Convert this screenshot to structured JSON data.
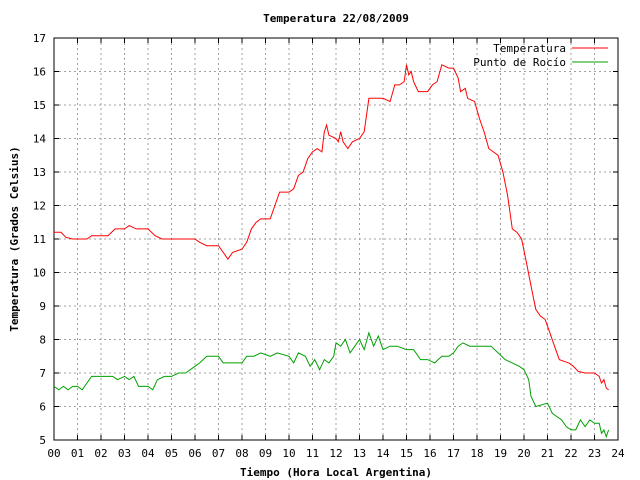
{
  "chart_data": {
    "type": "line",
    "title": "Temperatura 22/08/2009",
    "xlabel": "Tiempo (Hora Local Argentina)",
    "ylabel": "Temperatura (Grados Celsius)",
    "xlim": [
      0,
      24
    ],
    "ylim": [
      5,
      17
    ],
    "x_ticks": [
      0,
      1,
      2,
      3,
      4,
      5,
      6,
      7,
      8,
      9,
      10,
      11,
      12,
      13,
      14,
      15,
      16,
      17,
      18,
      19,
      20,
      21,
      22,
      23,
      24
    ],
    "x_tick_labels": [
      "00",
      "01",
      "02",
      "03",
      "04",
      "05",
      "06",
      "07",
      "08",
      "09",
      "10",
      "11",
      "12",
      "13",
      "14",
      "15",
      "16",
      "17",
      "18",
      "19",
      "20",
      "21",
      "22",
      "23",
      "24"
    ],
    "y_ticks": [
      5,
      6,
      7,
      8,
      9,
      10,
      11,
      12,
      13,
      14,
      15,
      16,
      17
    ],
    "y_tick_labels": [
      "5",
      "6",
      "7",
      "8",
      "9",
      "10",
      "11",
      "12",
      "13",
      "14",
      "15",
      "16",
      "17"
    ],
    "grid": true,
    "legend_position": "top-right",
    "series": [
      {
        "name": "Temperatura",
        "color": "#ff0000",
        "points": [
          [
            0.0,
            11.2
          ],
          [
            0.3,
            11.2
          ],
          [
            0.5,
            11.05
          ],
          [
            0.8,
            11.0
          ],
          [
            1.0,
            11.0
          ],
          [
            1.4,
            11.0
          ],
          [
            1.6,
            11.1
          ],
          [
            2.0,
            11.1
          ],
          [
            2.3,
            11.1
          ],
          [
            2.6,
            11.3
          ],
          [
            3.0,
            11.3
          ],
          [
            3.2,
            11.4
          ],
          [
            3.5,
            11.3
          ],
          [
            4.0,
            11.3
          ],
          [
            4.3,
            11.1
          ],
          [
            4.6,
            11.0
          ],
          [
            5.0,
            11.0
          ],
          [
            5.5,
            11.0
          ],
          [
            6.0,
            11.0
          ],
          [
            6.2,
            10.9
          ],
          [
            6.5,
            10.8
          ],
          [
            7.0,
            10.8
          ],
          [
            7.2,
            10.6
          ],
          [
            7.4,
            10.4
          ],
          [
            7.6,
            10.6
          ],
          [
            8.0,
            10.7
          ],
          [
            8.2,
            10.9
          ],
          [
            8.4,
            11.3
          ],
          [
            8.6,
            11.5
          ],
          [
            8.8,
            11.6
          ],
          [
            9.0,
            11.6
          ],
          [
            9.2,
            11.6
          ],
          [
            9.4,
            12.0
          ],
          [
            9.6,
            12.4
          ],
          [
            10.0,
            12.4
          ],
          [
            10.2,
            12.5
          ],
          [
            10.4,
            12.9
          ],
          [
            10.6,
            13.0
          ],
          [
            10.8,
            13.4
          ],
          [
            11.0,
            13.6
          ],
          [
            11.2,
            13.7
          ],
          [
            11.4,
            13.6
          ],
          [
            11.5,
            14.2
          ],
          [
            11.6,
            14.4
          ],
          [
            11.7,
            14.1
          ],
          [
            12.0,
            14.0
          ],
          [
            12.1,
            13.9
          ],
          [
            12.2,
            14.2
          ],
          [
            12.3,
            13.9
          ],
          [
            12.5,
            13.7
          ],
          [
            12.7,
            13.9
          ],
          [
            13.0,
            14.0
          ],
          [
            13.2,
            14.2
          ],
          [
            13.4,
            15.2
          ],
          [
            13.7,
            15.2
          ],
          [
            14.0,
            15.2
          ],
          [
            14.3,
            15.1
          ],
          [
            14.5,
            15.6
          ],
          [
            14.7,
            15.6
          ],
          [
            14.9,
            15.7
          ],
          [
            15.0,
            16.2
          ],
          [
            15.1,
            15.9
          ],
          [
            15.2,
            16.0
          ],
          [
            15.3,
            15.7
          ],
          [
            15.5,
            15.4
          ],
          [
            15.9,
            15.4
          ],
          [
            16.1,
            15.6
          ],
          [
            16.3,
            15.7
          ],
          [
            16.5,
            16.2
          ],
          [
            16.8,
            16.1
          ],
          [
            17.0,
            16.1
          ],
          [
            17.2,
            15.8
          ],
          [
            17.3,
            15.4
          ],
          [
            17.5,
            15.5
          ],
          [
            17.6,
            15.2
          ],
          [
            17.9,
            15.1
          ],
          [
            18.1,
            14.6
          ],
          [
            18.3,
            14.2
          ],
          [
            18.5,
            13.7
          ],
          [
            18.7,
            13.6
          ],
          [
            18.9,
            13.5
          ],
          [
            19.1,
            13.0
          ],
          [
            19.3,
            12.3
          ],
          [
            19.5,
            11.3
          ],
          [
            19.7,
            11.2
          ],
          [
            19.9,
            11.0
          ],
          [
            20.1,
            10.3
          ],
          [
            20.3,
            9.6
          ],
          [
            20.5,
            8.9
          ],
          [
            20.7,
            8.7
          ],
          [
            20.9,
            8.6
          ],
          [
            21.1,
            8.2
          ],
          [
            21.3,
            7.8
          ],
          [
            21.5,
            7.4
          ],
          [
            21.7,
            7.35
          ],
          [
            21.9,
            7.3
          ],
          [
            22.1,
            7.2
          ],
          [
            22.3,
            7.05
          ],
          [
            22.6,
            7.0
          ],
          [
            23.0,
            7.0
          ],
          [
            23.2,
            6.9
          ],
          [
            23.3,
            6.7
          ],
          [
            23.4,
            6.8
          ],
          [
            23.5,
            6.55
          ],
          [
            23.6,
            6.5
          ]
        ]
      },
      {
        "name": "Punto de Rocío",
        "color": "#00a000",
        "points": [
          [
            0.0,
            6.6
          ],
          [
            0.2,
            6.5
          ],
          [
            0.4,
            6.6
          ],
          [
            0.6,
            6.5
          ],
          [
            0.8,
            6.6
          ],
          [
            1.0,
            6.6
          ],
          [
            1.2,
            6.5
          ],
          [
            1.4,
            6.7
          ],
          [
            1.6,
            6.9
          ],
          [
            2.0,
            6.9
          ],
          [
            2.5,
            6.9
          ],
          [
            2.7,
            6.8
          ],
          [
            3.0,
            6.9
          ],
          [
            3.2,
            6.8
          ],
          [
            3.4,
            6.9
          ],
          [
            3.6,
            6.6
          ],
          [
            4.0,
            6.6
          ],
          [
            4.2,
            6.5
          ],
          [
            4.4,
            6.8
          ],
          [
            4.7,
            6.9
          ],
          [
            5.0,
            6.9
          ],
          [
            5.3,
            7.0
          ],
          [
            5.6,
            7.0
          ],
          [
            6.0,
            7.2
          ],
          [
            6.2,
            7.3
          ],
          [
            6.5,
            7.5
          ],
          [
            7.0,
            7.5
          ],
          [
            7.2,
            7.3
          ],
          [
            7.5,
            7.3
          ],
          [
            8.0,
            7.3
          ],
          [
            8.2,
            7.5
          ],
          [
            8.5,
            7.5
          ],
          [
            8.8,
            7.6
          ],
          [
            9.2,
            7.5
          ],
          [
            9.5,
            7.6
          ],
          [
            10.0,
            7.5
          ],
          [
            10.2,
            7.3
          ],
          [
            10.4,
            7.6
          ],
          [
            10.7,
            7.5
          ],
          [
            10.9,
            7.2
          ],
          [
            11.1,
            7.4
          ],
          [
            11.3,
            7.1
          ],
          [
            11.5,
            7.4
          ],
          [
            11.7,
            7.3
          ],
          [
            11.9,
            7.5
          ],
          [
            12.0,
            7.9
          ],
          [
            12.2,
            7.8
          ],
          [
            12.4,
            8.0
          ],
          [
            12.6,
            7.6
          ],
          [
            12.8,
            7.8
          ],
          [
            13.0,
            8.0
          ],
          [
            13.2,
            7.7
          ],
          [
            13.4,
            8.2
          ],
          [
            13.6,
            7.8
          ],
          [
            13.8,
            8.1
          ],
          [
            14.0,
            7.7
          ],
          [
            14.3,
            7.8
          ],
          [
            14.6,
            7.8
          ],
          [
            15.0,
            7.7
          ],
          [
            15.3,
            7.7
          ],
          [
            15.6,
            7.4
          ],
          [
            15.9,
            7.4
          ],
          [
            16.2,
            7.3
          ],
          [
            16.5,
            7.5
          ],
          [
            16.8,
            7.5
          ],
          [
            17.0,
            7.6
          ],
          [
            17.2,
            7.8
          ],
          [
            17.4,
            7.9
          ],
          [
            17.7,
            7.8
          ],
          [
            18.0,
            7.8
          ],
          [
            18.3,
            7.8
          ],
          [
            18.6,
            7.8
          ],
          [
            18.9,
            7.6
          ],
          [
            19.2,
            7.4
          ],
          [
            19.5,
            7.3
          ],
          [
            19.8,
            7.2
          ],
          [
            20.0,
            7.1
          ],
          [
            20.2,
            6.8
          ],
          [
            20.3,
            6.3
          ],
          [
            20.5,
            6.0
          ],
          [
            21.0,
            6.1
          ],
          [
            21.2,
            5.8
          ],
          [
            21.4,
            5.7
          ],
          [
            21.6,
            5.6
          ],
          [
            21.8,
            5.4
          ],
          [
            22.0,
            5.3
          ],
          [
            22.2,
            5.3
          ],
          [
            22.4,
            5.6
          ],
          [
            22.6,
            5.4
          ],
          [
            22.8,
            5.6
          ],
          [
            23.0,
            5.5
          ],
          [
            23.2,
            5.5
          ],
          [
            23.3,
            5.2
          ],
          [
            23.4,
            5.3
          ],
          [
            23.5,
            5.1
          ],
          [
            23.6,
            5.3
          ]
        ]
      }
    ]
  }
}
